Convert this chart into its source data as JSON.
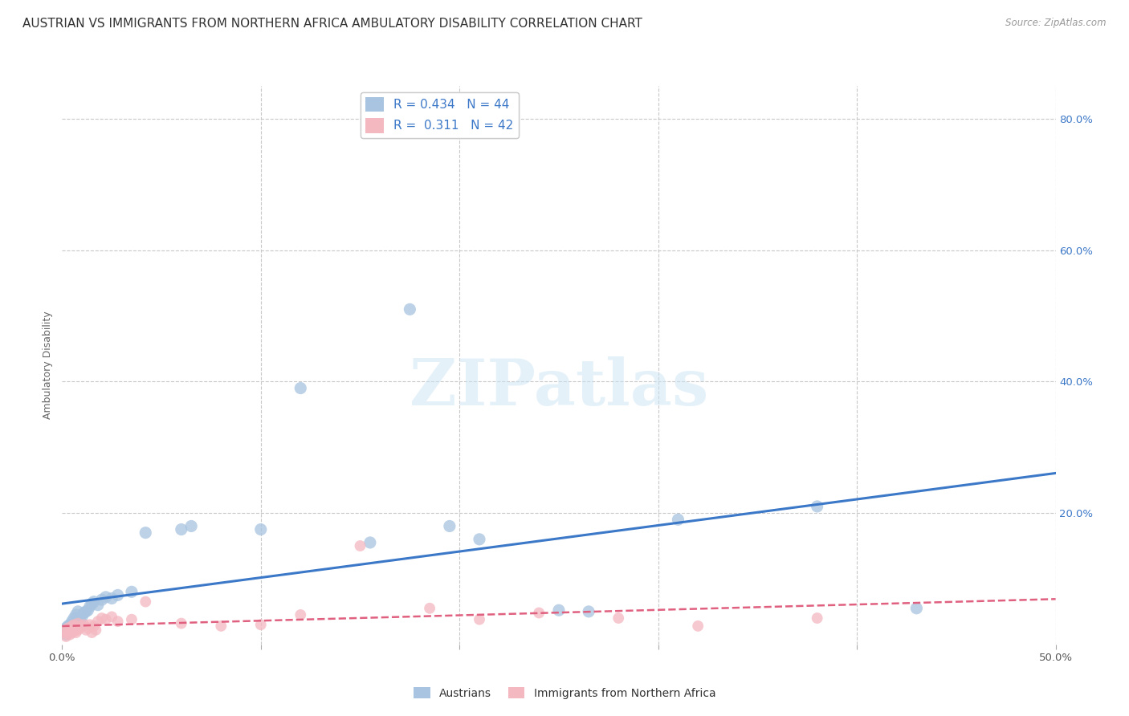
{
  "title": "AUSTRIAN VS IMMIGRANTS FROM NORTHERN AFRICA AMBULATORY DISABILITY CORRELATION CHART",
  "source": "Source: ZipAtlas.com",
  "ylabel": "Ambulatory Disability",
  "xlim": [
    0.0,
    0.5
  ],
  "ylim": [
    0.0,
    0.85
  ],
  "xticks": [
    0.0,
    0.1,
    0.2,
    0.3,
    0.4,
    0.5
  ],
  "xtick_labels_show": [
    "0.0%",
    "",
    "",
    "",
    "",
    "50.0%"
  ],
  "yticks_right": [
    0.0,
    0.2,
    0.4,
    0.6,
    0.8
  ],
  "ytick_labels_right": [
    "",
    "20.0%",
    "40.0%",
    "60.0%",
    "80.0%"
  ],
  "bg_color": "#ffffff",
  "grid_color": "#c8c8c8",
  "austrians_color": "#a8c4e0",
  "immigrants_color": "#f4b8c1",
  "austrians_line_color": "#3c78c8",
  "immigrants_line_color": "#e06080",
  "legend_label1": "Austrians",
  "legend_label2": "Immigrants from Northern Africa",
  "austrians_x": [
    0.001,
    0.002,
    0.002,
    0.003,
    0.003,
    0.003,
    0.004,
    0.004,
    0.005,
    0.005,
    0.006,
    0.006,
    0.007,
    0.007,
    0.008,
    0.008,
    0.009,
    0.01,
    0.011,
    0.012,
    0.013,
    0.014,
    0.015,
    0.016,
    0.018,
    0.02,
    0.022,
    0.025,
    0.028,
    0.035,
    0.042,
    0.06,
    0.065,
    0.1,
    0.12,
    0.155,
    0.175,
    0.195,
    0.21,
    0.25,
    0.265,
    0.31,
    0.38,
    0.43
  ],
  "austrians_y": [
    0.02,
    0.015,
    0.025,
    0.018,
    0.022,
    0.028,
    0.02,
    0.03,
    0.022,
    0.035,
    0.025,
    0.04,
    0.03,
    0.045,
    0.032,
    0.05,
    0.038,
    0.042,
    0.048,
    0.05,
    0.052,
    0.058,
    0.062,
    0.065,
    0.06,
    0.068,
    0.072,
    0.07,
    0.075,
    0.08,
    0.17,
    0.175,
    0.18,
    0.175,
    0.39,
    0.155,
    0.51,
    0.18,
    0.16,
    0.052,
    0.05,
    0.19,
    0.21,
    0.055
  ],
  "immigrants_x": [
    0.001,
    0.002,
    0.002,
    0.003,
    0.003,
    0.004,
    0.004,
    0.005,
    0.005,
    0.006,
    0.006,
    0.007,
    0.007,
    0.008,
    0.008,
    0.009,
    0.01,
    0.011,
    0.012,
    0.013,
    0.014,
    0.015,
    0.016,
    0.017,
    0.018,
    0.02,
    0.022,
    0.025,
    0.028,
    0.035,
    0.042,
    0.06,
    0.08,
    0.1,
    0.12,
    0.15,
    0.185,
    0.21,
    0.24,
    0.28,
    0.32,
    0.38
  ],
  "immigrants_y": [
    0.018,
    0.012,
    0.022,
    0.016,
    0.025,
    0.015,
    0.02,
    0.018,
    0.028,
    0.02,
    0.03,
    0.018,
    0.025,
    0.022,
    0.032,
    0.025,
    0.028,
    0.03,
    0.022,
    0.025,
    0.03,
    0.018,
    0.028,
    0.022,
    0.035,
    0.04,
    0.038,
    0.042,
    0.035,
    0.038,
    0.065,
    0.032,
    0.028,
    0.03,
    0.045,
    0.15,
    0.055,
    0.038,
    0.048,
    0.04,
    0.028,
    0.04
  ],
  "watermark": "ZIPatlas",
  "title_fontsize": 11,
  "axis_fontsize": 9,
  "tick_fontsize": 9.5
}
